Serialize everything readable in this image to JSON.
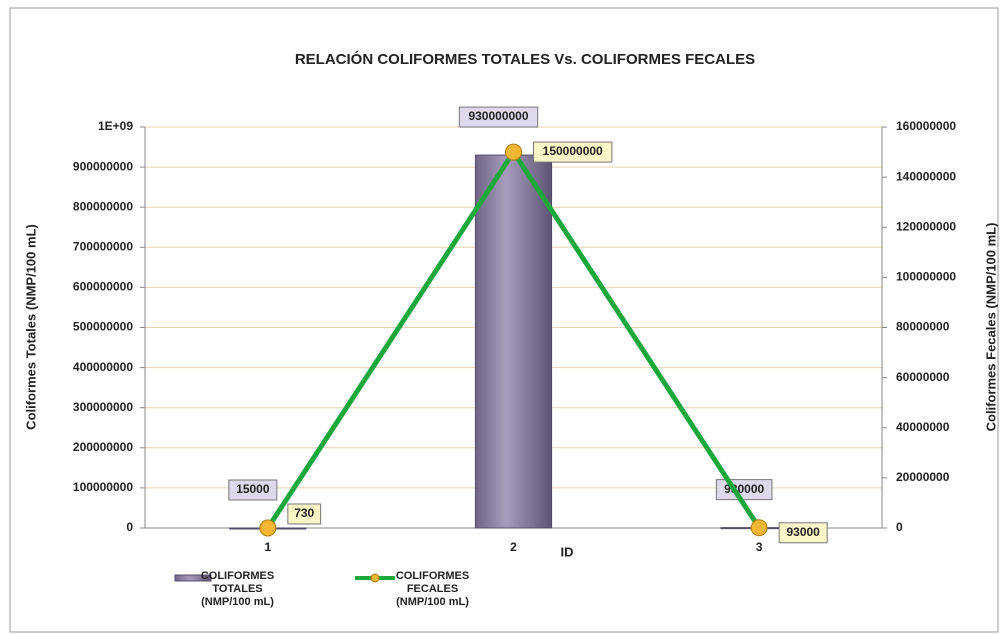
{
  "chart_data": {
    "type": "bar_line",
    "title": "RELACIÓN COLIFORMES TOTALES Vs. COLIFORMES FECALES",
    "x_label": "ID",
    "y_label": "Coliformes Totales (NMP/100 mL)",
    "y2_label": "Coliformes Fecales (NMP/100 mL)",
    "categories": [
      "1",
      "2",
      "3"
    ],
    "series": [
      {
        "name": "COLIFORMES TOTALES (NMP/100 mL)",
        "type": "bar",
        "color": "#a89cbd",
        "values": [
          15000,
          930000000,
          930000
        ]
      },
      {
        "name": "COLIFORMES FECALES (NMP/100 mL)",
        "type": "line",
        "color": "#1aa83c",
        "marker_color": "#f2b632",
        "axis": "y2",
        "values": [
          730,
          150000000,
          93000
        ]
      }
    ],
    "ylim": [
      0,
      1000000000
    ],
    "yticks": [
      0,
      100000000,
      200000000,
      300000000,
      400000000,
      500000000,
      600000000,
      700000000,
      800000000,
      900000000,
      {
        "value": 1000000000,
        "label": "1E+09"
      }
    ],
    "y2lim": [
      0,
      160000000
    ],
    "y2ticks": [
      0,
      20000000,
      40000000,
      60000000,
      80000000,
      100000000,
      120000000,
      140000000,
      160000000
    ],
    "grid": true
  }
}
